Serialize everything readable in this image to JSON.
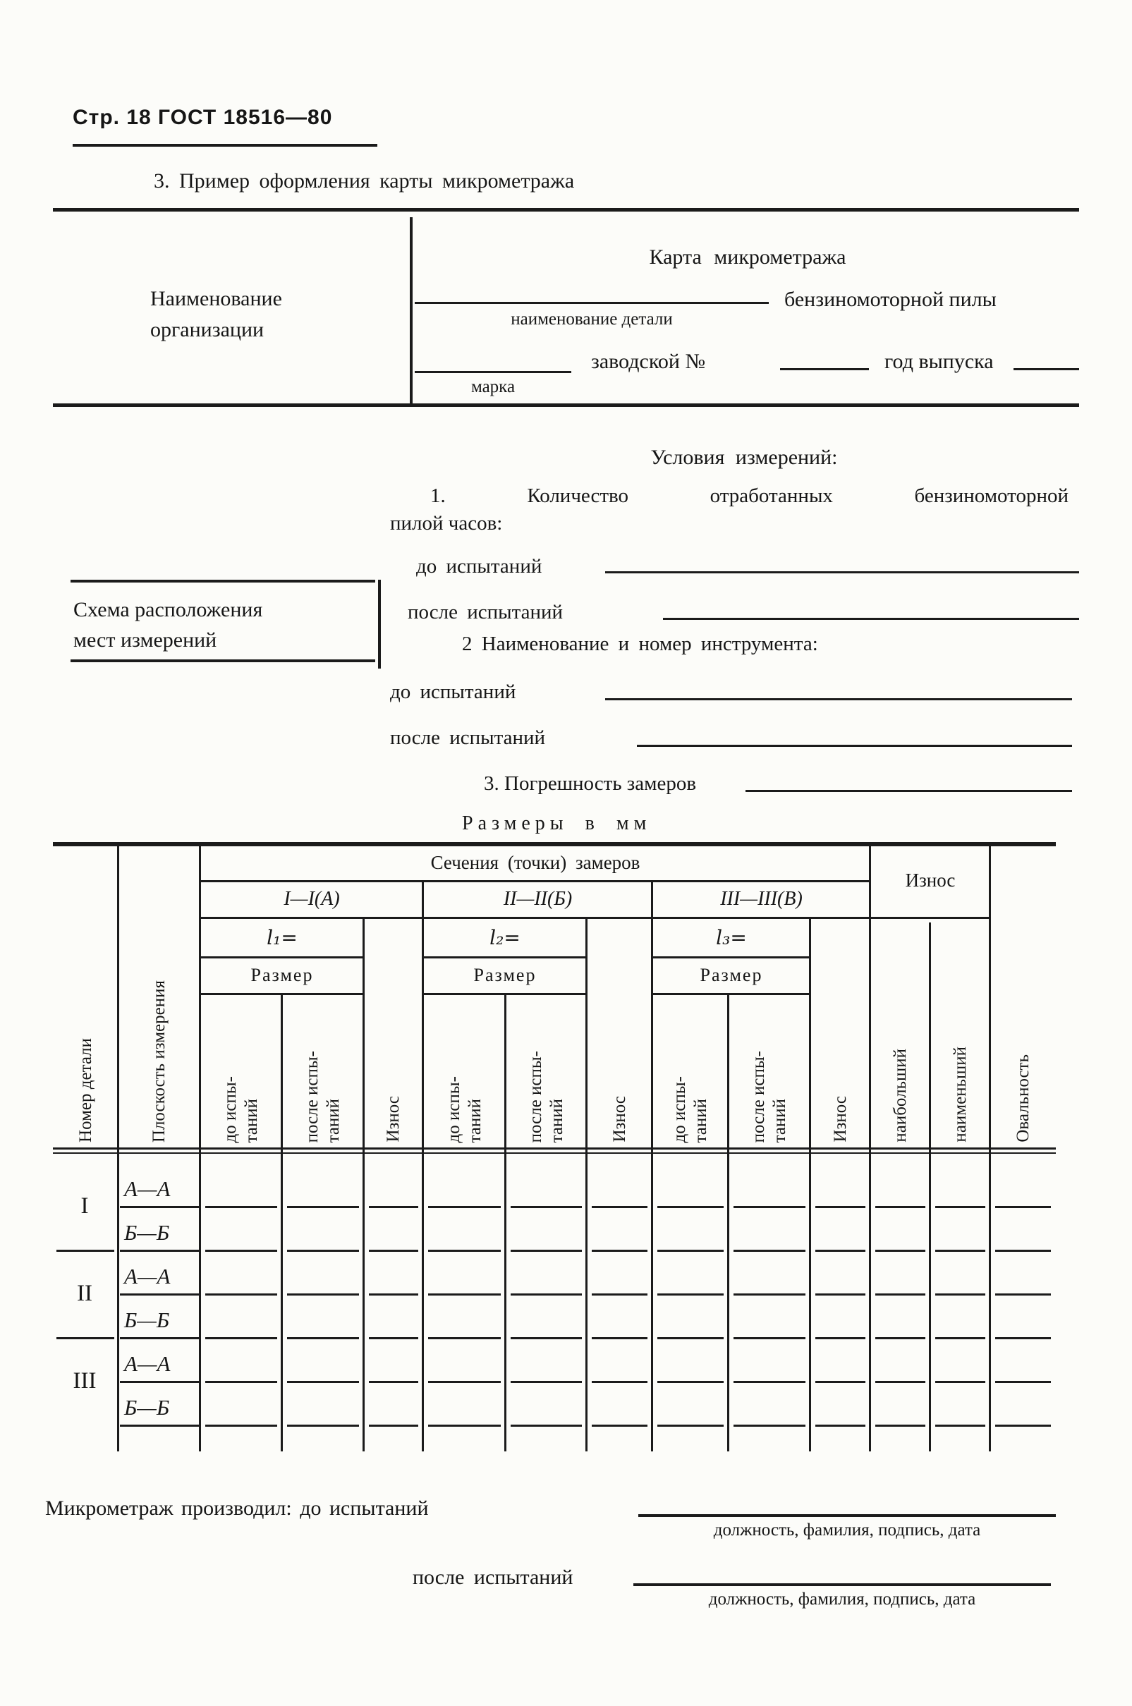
{
  "page_header": {
    "text": "Стр. 18 ГОСТ 18516—80"
  },
  "section_title": "3. Пример оформления карты микрометража",
  "form": {
    "org_name": "Наименование\nорганизации",
    "card_title": "Карта микрометража",
    "detail_caption": "наименование детали",
    "detail_value": "бензиномоторной пилы",
    "mark_caption": "марка",
    "factory_no_label": "заводской №",
    "year_label": "год выпуска"
  },
  "conditions": {
    "title": "Условия измерений:",
    "item1_line1": "1. Количество отработанных бензиномоторной",
    "item1_line2": "пилой часов:",
    "before_label_1": "до испытаний",
    "after_label_1": "после испытаний",
    "item2": "2 Наименование и номер инструмента:",
    "before_label_2": "до испытаний",
    "after_label_2": "после испытаний",
    "item3": "3. Погрешность замеров",
    "scheme_box": "Схема расположения\nмест измерений",
    "units_note": "Размеры в мм"
  },
  "table": {
    "header": {
      "col_part_no": "Номер детали",
      "col_plane": "Плоскость измерения",
      "sections_title": "Сечения (точки) замеров",
      "sections": [
        {
          "name": "I—I(А)",
          "l": "l₁=",
          "size": "Размер",
          "before": "до испы-\nтаний",
          "after": "после испы-\nтаний",
          "wear": "Износ"
        },
        {
          "name": "II—II(Б)",
          "l": "l₂=",
          "size": "Размер",
          "before": "до испы-\nтаний",
          "after": "после испы-\nтаний",
          "wear": "Износ"
        },
        {
          "name": "III—III(В)",
          "l": "l₃=",
          "size": "Размер",
          "before": "до испы-\nтаний",
          "after": "после испы-\nтаний",
          "wear": "Износ"
        }
      ],
      "wear_title": "Износ",
      "wear_sub": [
        "наибольший",
        "наименьший"
      ],
      "col_ovality": "Овальность"
    },
    "rows": [
      {
        "no": "I",
        "planes": [
          "А—А",
          "Б—Б"
        ]
      },
      {
        "no": "II",
        "planes": [
          "А—А",
          "Б—Б"
        ]
      },
      {
        "no": "III",
        "planes": [
          "А—А",
          "Б—Б"
        ]
      }
    ]
  },
  "footer": {
    "performed_label": "Микрометраж производил: до испытаний",
    "after_label": "после испытаний",
    "sign_caption_1": "должность, фамилия, подпись, дата",
    "sign_caption_2": "должность, фамилия, подпись, дата"
  }
}
